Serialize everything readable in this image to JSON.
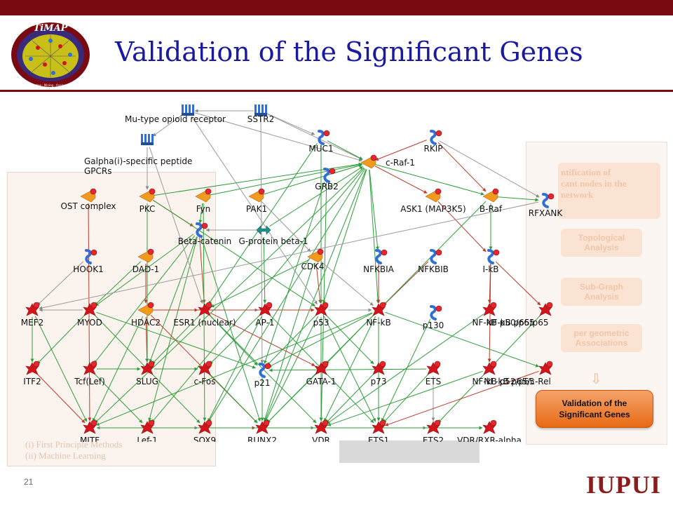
{
  "header": {
    "title": "Validation of the Significant Genes",
    "logo_text": "TiMAP",
    "logo_ring_text": "Text · Information · Mining · Analysis · Prediction"
  },
  "footer": {
    "slide_number": "21",
    "brand": "IUPUI"
  },
  "workflow": {
    "identification_label": "ntification of\ncant nodes in the\nnetwork",
    "topological_label": "Topological\nAnalysis",
    "subgraph_label": "Sub-Graph\nAnalysis",
    "hypergeometric_label": "per geometric\nAssociations",
    "validation_button": "Validation of the\nSignificant Genes",
    "methods_note_1": "(i) First Principle Methods",
    "methods_note_2": "(ii)  Machine Learning"
  },
  "colors": {
    "brand_maroon": "#7a0a12",
    "title_blue": "#1a1aa0",
    "activation_edge": "#2e9e3a",
    "inhibition_edge": "#c0392b",
    "neutral_edge": "#9a9a9a",
    "gene_red": "#d4141a",
    "enzyme_orange": "#f29a1e",
    "protein_blue": "#2f6fd6"
  },
  "network": {
    "nodes": [
      {
        "id": "mu",
        "label": "Mu-type opioid receptor",
        "icon": "receptor-icon"
      },
      {
        "id": "sstr2",
        "label": "SSTR2",
        "icon": "receptor-icon"
      },
      {
        "id": "galpha",
        "label": "Galpha(i)-specific peptide\nGPCRs",
        "icon": "receptor-icon"
      },
      {
        "id": "muc1",
        "label": "MUC1",
        "icon": "protein-icon"
      },
      {
        "id": "rkip",
        "label": "RKIP",
        "icon": "protein-icon"
      },
      {
        "id": "craf",
        "label": "c-Raf-1",
        "icon": "kinase-icon"
      },
      {
        "id": "grb2",
        "label": "GRB2",
        "icon": "protein-icon"
      },
      {
        "id": "ost",
        "label": "OST complex",
        "icon": "kinase-icon"
      },
      {
        "id": "pkc",
        "label": "PKC",
        "icon": "kinase-icon"
      },
      {
        "id": "fyn",
        "label": "Fyn",
        "icon": "kinase-icon"
      },
      {
        "id": "pak1",
        "label": "PAK1",
        "icon": "kinase-icon"
      },
      {
        "id": "ask1",
        "label": "ASK1 (MAP3K5)",
        "icon": "kinase-icon"
      },
      {
        "id": "braf",
        "label": "B-Raf",
        "icon": "kinase-icon"
      },
      {
        "id": "rfxank",
        "label": "RFXANK",
        "icon": "protein-icon"
      },
      {
        "id": "bcat",
        "label": "Beta-catenin",
        "icon": "protein-icon"
      },
      {
        "id": "gprot",
        "label": "G-protein beta-1",
        "icon": "gprotein-icon"
      },
      {
        "id": "hook1",
        "label": "HOOK1",
        "icon": "protein-icon"
      },
      {
        "id": "dad1",
        "label": "DAD-1",
        "icon": "kinase-icon"
      },
      {
        "id": "cdk4",
        "label": "CDK4",
        "icon": "kinase-icon"
      },
      {
        "id": "nfkbia",
        "label": "NFKBIA",
        "icon": "protein-icon"
      },
      {
        "id": "nfkbib",
        "label": "NFKBIB",
        "icon": "protein-icon"
      },
      {
        "id": "ikb",
        "label": "I-kB",
        "icon": "protein-icon"
      },
      {
        "id": "mef2",
        "label": "MEF2",
        "icon": "tf-icon"
      },
      {
        "id": "myod",
        "label": "MYOD",
        "icon": "tf-icon"
      },
      {
        "id": "hdac2",
        "label": "HDAC2",
        "icon": "kinase-icon"
      },
      {
        "id": "esr1",
        "label": "ESR1 (nuclear)",
        "icon": "tf-icon"
      },
      {
        "id": "ap1",
        "label": "AP-1",
        "icon": "tf-icon"
      },
      {
        "id": "p53",
        "label": "p53",
        "icon": "tf-icon"
      },
      {
        "id": "nfkb",
        "label": "NF-kB",
        "icon": "tf-icon"
      },
      {
        "id": "p130",
        "label": "p130",
        "icon": "protein-icon"
      },
      {
        "id": "nfkbp50",
        "label": "NF-kB p50/p65",
        "icon": "tf-icon"
      },
      {
        "id": "p65",
        "label": "NF-kB p65/p65",
        "icon": "tf-icon"
      },
      {
        "id": "itf2",
        "label": "ITF2",
        "icon": "tf-icon"
      },
      {
        "id": "tcf",
        "label": "Tcf(Lef)",
        "icon": "tf-icon"
      },
      {
        "id": "slug",
        "label": "SLUG",
        "icon": "tf-icon"
      },
      {
        "id": "cfos",
        "label": "c-Fos",
        "icon": "tf-icon"
      },
      {
        "id": "p21",
        "label": "p21",
        "icon": "protein-icon"
      },
      {
        "id": "gata1",
        "label": "GATA-1",
        "icon": "tf-icon"
      },
      {
        "id": "p73",
        "label": "p73",
        "icon": "tf-icon"
      },
      {
        "id": "ets",
        "label": "ETS",
        "icon": "tf-icon"
      },
      {
        "id": "nfkbp52",
        "label": "NF-kB p52/p65",
        "icon": "tf-icon"
      },
      {
        "id": "crel",
        "label": "NF-kB p65/c-Rel",
        "icon": "tf-icon"
      },
      {
        "id": "mitf",
        "label": "MITF",
        "icon": "tf-icon"
      },
      {
        "id": "lef1",
        "label": "Lef-1",
        "icon": "tf-icon"
      },
      {
        "id": "sox9",
        "label": "SOX9",
        "icon": "tf-icon"
      },
      {
        "id": "runx2",
        "label": "RUNX2",
        "icon": "tf-icon"
      },
      {
        "id": "vdr",
        "label": "VDR",
        "icon": "tf-icon"
      },
      {
        "id": "ets1",
        "label": "ETS1",
        "icon": "tf-icon"
      },
      {
        "id": "ets2",
        "label": "ETS2",
        "icon": "tf-icon"
      },
      {
        "id": "vdrrxr",
        "label": "VDR/RXR-alpha",
        "icon": "tf-icon"
      }
    ],
    "edges": [
      [
        "sstr2",
        "mu",
        "n"
      ],
      [
        "sstr2",
        "muc1",
        "n"
      ],
      [
        "mu",
        "galpha",
        "n"
      ],
      [
        "mu",
        "craf",
        "n"
      ],
      [
        "sstr2",
        "craf",
        "n"
      ],
      [
        "muc1",
        "craf",
        "g"
      ],
      [
        "rkip",
        "craf",
        "r"
      ],
      [
        "grb2",
        "craf",
        "g"
      ],
      [
        "craf",
        "ask1",
        "r"
      ],
      [
        "craf",
        "braf",
        "g"
      ],
      [
        "craf",
        "nfkbia",
        "g"
      ],
      [
        "craf",
        "p53",
        "g"
      ],
      [
        "craf",
        "nfkb",
        "g"
      ],
      [
        "braf",
        "ikb",
        "g"
      ],
      [
        "ask1",
        "ikb",
        "r"
      ],
      [
        "braf",
        "rfxank",
        "g"
      ],
      [
        "rkip",
        "braf",
        "r"
      ],
      [
        "rkip",
        "rfxank",
        "n"
      ],
      [
        "pkc",
        "craf",
        "g"
      ],
      [
        "fyn",
        "craf",
        "g"
      ],
      [
        "pak1",
        "craf",
        "g"
      ],
      [
        "fyn",
        "bcat",
        "g"
      ],
      [
        "pkc",
        "bcat",
        "r"
      ],
      [
        "bcat",
        "esr1",
        "r"
      ],
      [
        "bcat",
        "myod",
        "g"
      ],
      [
        "bcat",
        "tcf",
        "g"
      ],
      [
        "bcat",
        "lef1",
        "g"
      ],
      [
        "bcat",
        "slug",
        "g"
      ],
      [
        "gprot",
        "bcat",
        "n"
      ],
      [
        "gprot",
        "craf",
        "g"
      ],
      [
        "cdk4",
        "p53",
        "r"
      ],
      [
        "cdk4",
        "runx2",
        "g"
      ],
      [
        "cdk4",
        "esr1",
        "g"
      ],
      [
        "nfkbia",
        "nfkb",
        "r"
      ],
      [
        "nfkbib",
        "nfkb",
        "r"
      ],
      [
        "ikb",
        "nfkbp50",
        "r"
      ],
      [
        "ikb",
        "p65",
        "r"
      ],
      [
        "ikb",
        "nfkbp52",
        "r"
      ],
      [
        "nfkb",
        "crel",
        "g"
      ],
      [
        "nfkb",
        "ets1",
        "g"
      ],
      [
        "p53",
        "p21",
        "g"
      ],
      [
        "p53",
        "p73",
        "g"
      ],
      [
        "p53",
        "runx2",
        "g"
      ],
      [
        "ap1",
        "cfos",
        "g"
      ],
      [
        "ap1",
        "sox9",
        "g"
      ],
      [
        "esr1",
        "ap1",
        "n"
      ],
      [
        "esr1",
        "p53",
        "n"
      ],
      [
        "esr1",
        "slug",
        "g"
      ],
      [
        "esr1",
        "p21",
        "g"
      ],
      [
        "esr1",
        "gata1",
        "r"
      ],
      [
        "hdac2",
        "esr1",
        "r"
      ],
      [
        "hdac2",
        "p53",
        "r"
      ],
      [
        "hdac2",
        "runx2",
        "r"
      ],
      [
        "hdac2",
        "slug",
        "r"
      ],
      [
        "hdac2",
        "mitf",
        "g"
      ],
      [
        "myod",
        "itf2",
        "g"
      ],
      [
        "myod",
        "mef2",
        "n"
      ],
      [
        "myod",
        "p21",
        "g"
      ],
      [
        "myod",
        "sox9",
        "g"
      ],
      [
        "mef2",
        "itf2",
        "g"
      ],
      [
        "mef2",
        "mitf",
        "g"
      ],
      [
        "tcf",
        "slug",
        "g"
      ],
      [
        "tcf",
        "lef1",
        "g"
      ],
      [
        "slug",
        "cfos",
        "g"
      ],
      [
        "cfos",
        "runx2",
        "g"
      ],
      [
        "p21",
        "runx2",
        "g"
      ],
      [
        "gata1",
        "runx2",
        "g"
      ],
      [
        "gata1",
        "vdr",
        "g"
      ],
      [
        "p73",
        "ets1",
        "g"
      ],
      [
        "p73",
        "vdr",
        "g"
      ],
      [
        "ets",
        "ets1",
        "g"
      ],
      [
        "ets",
        "ets2",
        "n"
      ],
      [
        "ets",
        "p21",
        "g"
      ],
      [
        "vdr",
        "vdrrxr",
        "n"
      ],
      [
        "ets1",
        "ets2",
        "n"
      ],
      [
        "runx2",
        "vdr",
        "n"
      ],
      [
        "sox9",
        "runx2",
        "r"
      ],
      [
        "lef1",
        "mitf",
        "n"
      ],
      [
        "mitf",
        "sox9",
        "n"
      ],
      [
        "nfkb",
        "p21",
        "g"
      ],
      [
        "nfkb",
        "gata1",
        "g"
      ],
      [
        "nfkb",
        "vdr",
        "g"
      ],
      [
        "p53",
        "ets1",
        "g"
      ],
      [
        "p53",
        "vdr",
        "g"
      ],
      [
        "craf",
        "runx2",
        "g"
      ],
      [
        "craf",
        "mitf",
        "g"
      ],
      [
        "craf",
        "sox9",
        "g"
      ],
      [
        "braf",
        "runx2",
        "g"
      ],
      [
        "fyn",
        "sox9",
        "g"
      ],
      [
        "pak1",
        "cdk4",
        "n"
      ],
      [
        "galpha",
        "pkc",
        "n"
      ],
      [
        "galpha",
        "esr1",
        "n"
      ],
      [
        "mu",
        "p53",
        "n"
      ],
      [
        "sstr2",
        "p21",
        "n"
      ],
      [
        "muc1",
        "p53",
        "g"
      ],
      [
        "muc1",
        "esr1",
        "g"
      ],
      [
        "grb2",
        "p21",
        "g"
      ],
      [
        "grb2",
        "vdr",
        "g"
      ],
      [
        "dad1",
        "myod",
        "g"
      ],
      [
        "dad1",
        "hdac2",
        "r"
      ],
      [
        "hook1",
        "mef2",
        "n"
      ],
      [
        "p130",
        "ets1",
        "g"
      ],
      [
        "nfkbp50",
        "vdr",
        "g"
      ],
      [
        "p65",
        "ets2",
        "g"
      ],
      [
        "crel",
        "ets1",
        "r"
      ],
      [
        "nfkbp52",
        "vdr",
        "g"
      ],
      [
        "ost",
        "mitf",
        "r"
      ],
      [
        "pkc",
        "slug",
        "g"
      ],
      [
        "pkc",
        "p53",
        "g"
      ],
      [
        "bcat",
        "runx2",
        "g"
      ],
      [
        "gprot",
        "ap1",
        "g"
      ],
      [
        "cdk4",
        "nfkb",
        "n"
      ],
      [
        "esr1",
        "vdr",
        "g"
      ],
      [
        "ap1",
        "ets1",
        "g"
      ],
      [
        "p53",
        "nfkb",
        "n"
      ],
      [
        "nfkb",
        "mitf",
        "g"
      ],
      [
        "mitf",
        "vdrrxr",
        "g"
      ],
      [
        "itf2",
        "mitf",
        "r"
      ],
      [
        "craf",
        "lef1",
        "g"
      ],
      [
        "rfxank",
        "mef2",
        "n"
      ]
    ]
  }
}
